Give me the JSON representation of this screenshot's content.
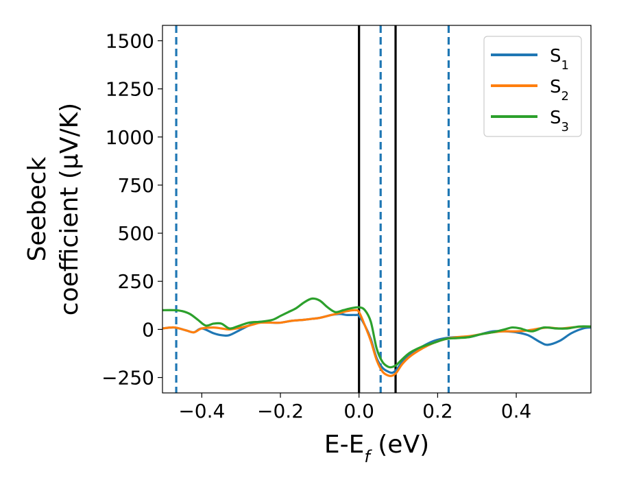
{
  "chart_data": {
    "type": "line",
    "xlabel": "E-E",
    "xlabel_sub": "f",
    "xlabel_unit": " (eV)",
    "ylabel_line1": "Seebeck",
    "ylabel_line2": "coefficient  (μV/K)",
    "xlim": [
      -0.5,
      0.59
    ],
    "ylim": [
      -330,
      1580
    ],
    "xticks": [
      -0.4,
      -0.2,
      0.0,
      0.2,
      0.4
    ],
    "xtick_labels": [
      "−0.4",
      "−0.2",
      "0.0",
      "0.2",
      "0.4"
    ],
    "yticks": [
      -250,
      0,
      250,
      500,
      750,
      1000,
      1250,
      1500
    ],
    "ytick_labels": [
      "−250",
      "0",
      "250",
      "500",
      "750",
      "1000",
      "1250",
      "1500"
    ],
    "grid": false,
    "legend_position": "top-right",
    "legend": [
      {
        "base": "S",
        "sub": "1",
        "color": "#1f77b4"
      },
      {
        "base": "S",
        "sub": "2",
        "color": "#ff7f0e"
      },
      {
        "base": "S",
        "sub": "3",
        "color": "#2ca02c"
      }
    ],
    "vlines": [
      {
        "x": -0.465,
        "style": "dashed",
        "color": "#1f77b4"
      },
      {
        "x": 0.0,
        "style": "solid",
        "color": "#000000"
      },
      {
        "x": 0.055,
        "style": "dashed",
        "color": "#1f77b4"
      },
      {
        "x": 0.093,
        "style": "solid",
        "color": "#000000"
      },
      {
        "x": 0.228,
        "style": "dashed",
        "color": "#1f77b4"
      }
    ],
    "series": [
      {
        "name": "S1",
        "color": "#1f77b4",
        "x": [
          -0.5,
          -0.47,
          -0.44,
          -0.42,
          -0.4,
          -0.37,
          -0.35,
          -0.33,
          -0.3,
          -0.27,
          -0.25,
          -0.22,
          -0.2,
          -0.17,
          -0.14,
          -0.12,
          -0.1,
          -0.07,
          -0.05,
          -0.03,
          -0.01,
          0.0,
          0.015,
          0.03,
          0.045,
          0.06,
          0.075,
          0.085,
          0.095,
          0.11,
          0.13,
          0.16,
          0.19,
          0.22,
          0.25,
          0.28,
          0.31,
          0.34,
          0.37,
          0.4,
          0.43,
          0.46,
          0.48,
          0.51,
          0.54,
          0.57,
          0.59
        ],
        "values": [
          5,
          10,
          -5,
          -15,
          5,
          -20,
          -30,
          -30,
          0,
          30,
          40,
          35,
          35,
          45,
          50,
          55,
          60,
          75,
          80,
          75,
          75,
          70,
          20,
          -50,
          -150,
          -200,
          -220,
          -225,
          -210,
          -170,
          -130,
          -90,
          -60,
          -45,
          -40,
          -40,
          -25,
          -10,
          -10,
          -15,
          -30,
          -65,
          -80,
          -60,
          -20,
          5,
          10
        ]
      },
      {
        "name": "S2",
        "color": "#ff7f0e",
        "x": [
          -0.5,
          -0.47,
          -0.44,
          -0.42,
          -0.4,
          -0.37,
          -0.35,
          -0.33,
          -0.3,
          -0.27,
          -0.25,
          -0.22,
          -0.2,
          -0.17,
          -0.14,
          -0.12,
          -0.1,
          -0.07,
          -0.05,
          -0.03,
          -0.01,
          0.0,
          0.015,
          0.03,
          0.045,
          0.06,
          0.075,
          0.085,
          0.095,
          0.11,
          0.13,
          0.16,
          0.19,
          0.22,
          0.25,
          0.28,
          0.31,
          0.34,
          0.37,
          0.4,
          0.43,
          0.46,
          0.48,
          0.51,
          0.54,
          0.57,
          0.59
        ],
        "values": [
          5,
          10,
          -5,
          -15,
          5,
          10,
          5,
          0,
          10,
          25,
          35,
          35,
          35,
          45,
          50,
          55,
          60,
          75,
          85,
          95,
          100,
          90,
          20,
          -60,
          -160,
          -220,
          -240,
          -240,
          -225,
          -180,
          -140,
          -100,
          -70,
          -50,
          -40,
          -35,
          -25,
          -15,
          -10,
          -10,
          -5,
          5,
          10,
          5,
          10,
          15,
          15
        ]
      },
      {
        "name": "S3",
        "color": "#2ca02c",
        "x": [
          -0.5,
          -0.47,
          -0.45,
          -0.43,
          -0.41,
          -0.39,
          -0.37,
          -0.35,
          -0.33,
          -0.31,
          -0.28,
          -0.25,
          -0.22,
          -0.2,
          -0.18,
          -0.16,
          -0.14,
          -0.12,
          -0.1,
          -0.08,
          -0.06,
          -0.04,
          -0.02,
          0.0,
          0.015,
          0.03,
          0.045,
          0.06,
          0.075,
          0.085,
          0.095,
          0.11,
          0.13,
          0.16,
          0.19,
          0.22,
          0.25,
          0.28,
          0.31,
          0.34,
          0.37,
          0.39,
          0.41,
          0.44,
          0.47,
          0.5,
          0.53,
          0.56,
          0.59
        ],
        "values": [
          100,
          100,
          95,
          80,
          50,
          20,
          30,
          30,
          5,
          15,
          35,
          40,
          50,
          70,
          90,
          110,
          140,
          160,
          150,
          115,
          90,
          100,
          110,
          115,
          100,
          40,
          -100,
          -170,
          -195,
          -195,
          -185,
          -155,
          -120,
          -90,
          -70,
          -50,
          -45,
          -40,
          -25,
          -15,
          0,
          10,
          5,
          -10,
          10,
          5,
          5,
          15,
          15
        ]
      }
    ]
  }
}
